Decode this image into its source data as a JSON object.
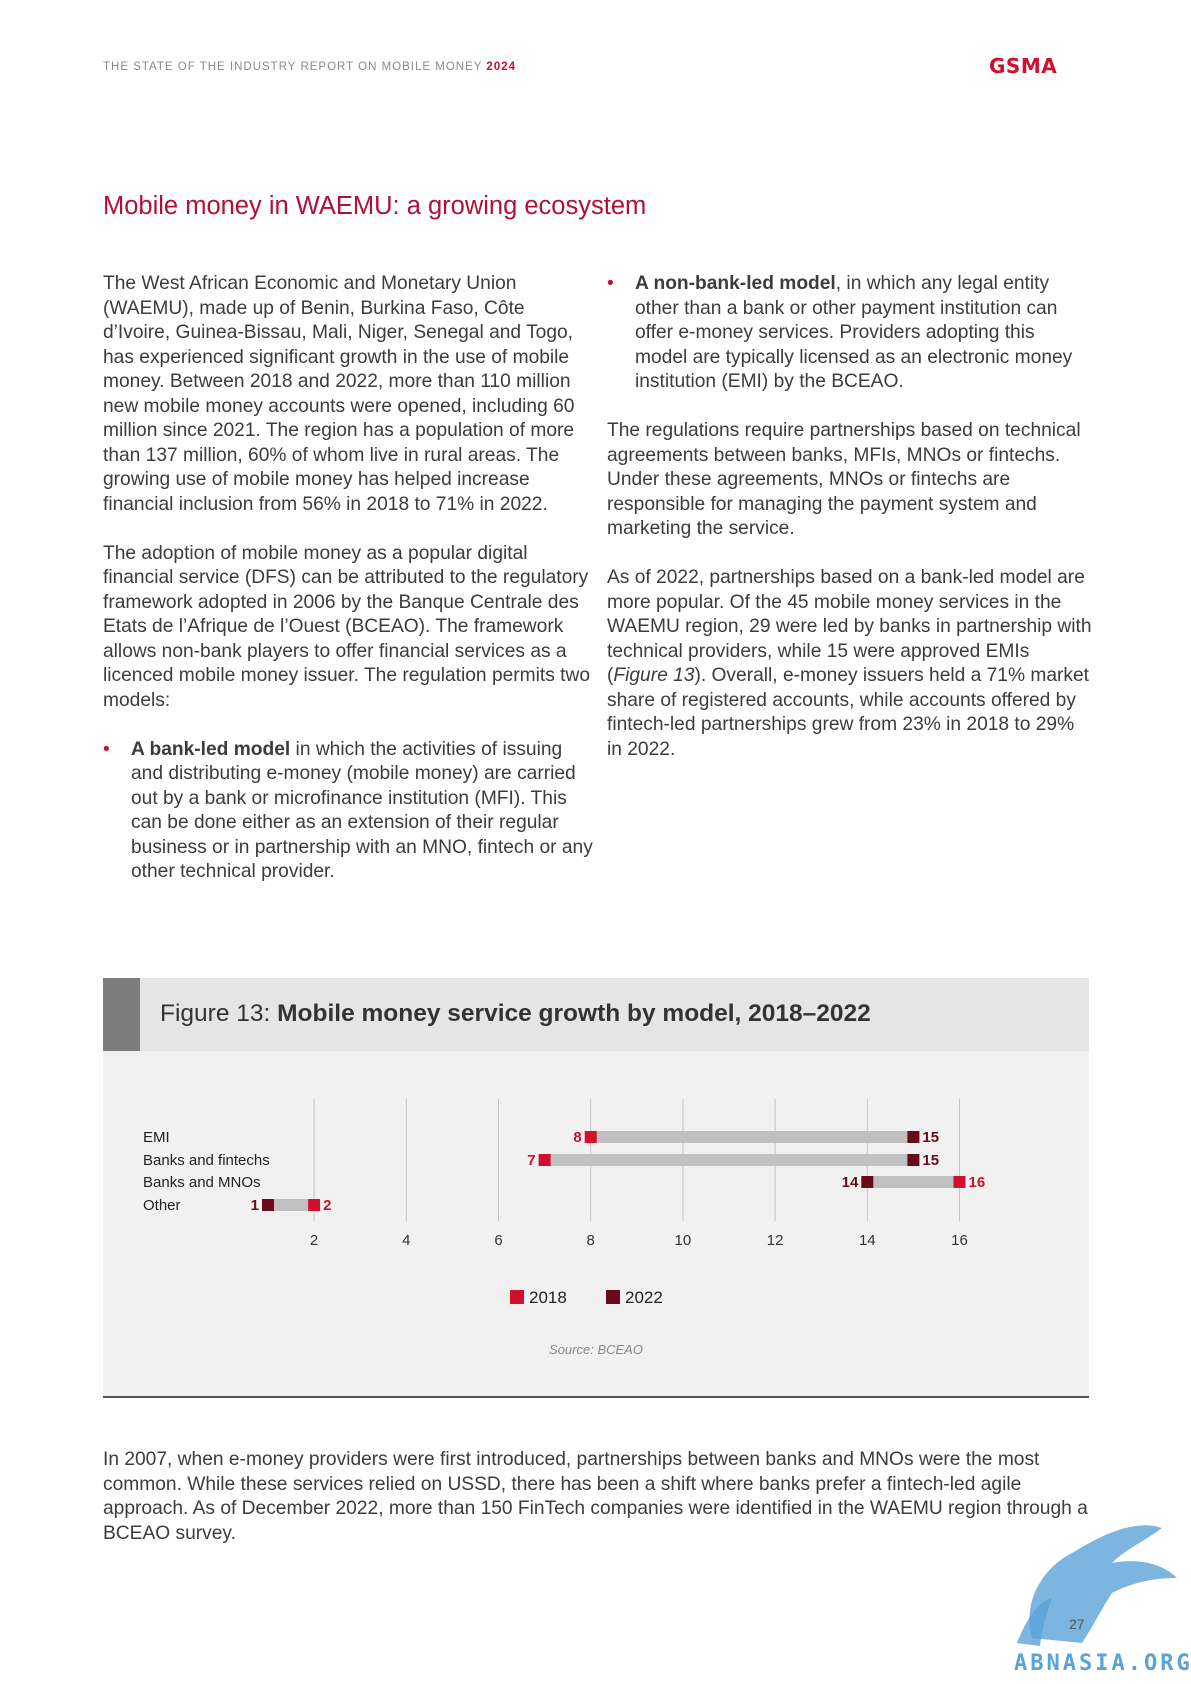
{
  "header": {
    "report_title": "THE STATE OF THE INDUSTRY REPORT ON MOBILE MONEY",
    "report_year": "2024",
    "logo": "GSMA"
  },
  "section_title": "Mobile money in WAEMU: a growing ecosystem",
  "left_column": {
    "p1": "The West African Economic and Monetary Union (WAEMU), made up of Benin, Burkina Faso, Côte d’Ivoire, Guinea-Bissau, Mali, Niger, Senegal and Togo, has experienced significant growth in the use of mobile money. Between 2018 and 2022, more than 110 million new mobile money accounts were opened, including 60 million since 2021. The region has a population of more than 137 million, 60% of whom live in rural areas. The growing use of mobile money has helped increase financial inclusion from 56% in 2018 to 71% in 2022.",
    "p2": "The adoption of mobile money as a popular digital financial service (DFS) can be attributed to the regulatory framework adopted in 2006 by the Banque Centrale des Etats de l’Afrique de l’Ouest (BCEAO). The framework allows non-bank players to offer financial services as a licenced mobile money issuer. The regulation permits two models:",
    "bullet1_bold": "A bank-led model",
    "bullet1_text": " in which the activities of issuing and distributing e-money (mobile money) are carried out by a bank or microfinance institution (MFI). This can be done either as an extension of their regular business or in partnership with an MNO, fintech or any other technical provider."
  },
  "right_column": {
    "bullet2_bold": "A non-bank-led model",
    "bullet2_text": ", in which any legal entity other than a bank or other payment institution can offer e-money services. Providers adopting this model are typically licensed as an electronic money institution (EMI) by the BCEAO.",
    "p3": "The regulations require partnerships based on technical agreements between banks, MFIs, MNOs or fintechs. Under these agreements, MNOs or fintechs are responsible for managing the payment system and marketing the service.",
    "p4_before": "As of 2022, partnerships based on a bank-led model are more popular. Of the 45 mobile money services in the WAEMU region, 29 were led by banks in partnership with technical providers, while 15 were approved EMIs (",
    "p4_ref": "Figure 13",
    "p4_after": "). Overall, e-money issuers held a 71% market share of registered accounts, while accounts offered by fintech-led partnerships grew from 23% in 2018 to 29% in 2022."
  },
  "figure": {
    "label": "Figure 13: ",
    "title": "Mobile money service growth by model, 2018–2022",
    "source": "Source: BCEAO"
  },
  "chart_data": {
    "type": "dumbbell",
    "title": "Mobile money service growth by model, 2018–2022",
    "categories": [
      "EMI",
      "Banks and fintechs",
      "Banks and MNOs",
      "Other"
    ],
    "series": [
      {
        "name": "2018",
        "color": "#d0102e",
        "values": [
          8,
          7,
          16,
          2
        ]
      },
      {
        "name": "2022",
        "color": "#6b0a1a",
        "values": [
          15,
          15,
          14,
          1
        ]
      }
    ],
    "x_ticks": [
      2,
      4,
      6,
      8,
      10,
      12,
      14,
      16
    ],
    "xlim": [
      0,
      17
    ],
    "connector_color": "#c0c0c0",
    "grid": true,
    "legend_position": "bottom-center"
  },
  "bottom_paragraph": "In 2007, when e-money providers were first introduced, partnerships between banks and MNOs were the most common. While these services relied on USSD, there has been a shift where banks prefer a fintech-led agile approach. As of December 2022, more than 150 FinTech companies were identified in the WAEMU region through a BCEAO survey.",
  "page_number": "27",
  "watermark_text": "ABNASIA.ORG"
}
